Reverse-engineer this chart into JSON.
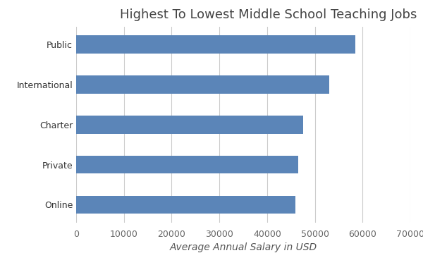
{
  "title": "Highest To Lowest Middle School Teaching Jobs",
  "categories": [
    "Online",
    "Private",
    "Charter",
    "International",
    "Public"
  ],
  "values": [
    46000,
    46500,
    47500,
    53000,
    58500
  ],
  "bar_color": "#5b85b8",
  "xlabel": "Average Annual Salary in USD",
  "xlim": [
    0,
    70000
  ],
  "xticks": [
    0,
    10000,
    20000,
    30000,
    40000,
    50000,
    60000,
    70000
  ],
  "background_color": "#ffffff",
  "title_fontsize": 13,
  "xlabel_fontsize": 10,
  "tick_fontsize": 9,
  "bar_height": 0.45
}
